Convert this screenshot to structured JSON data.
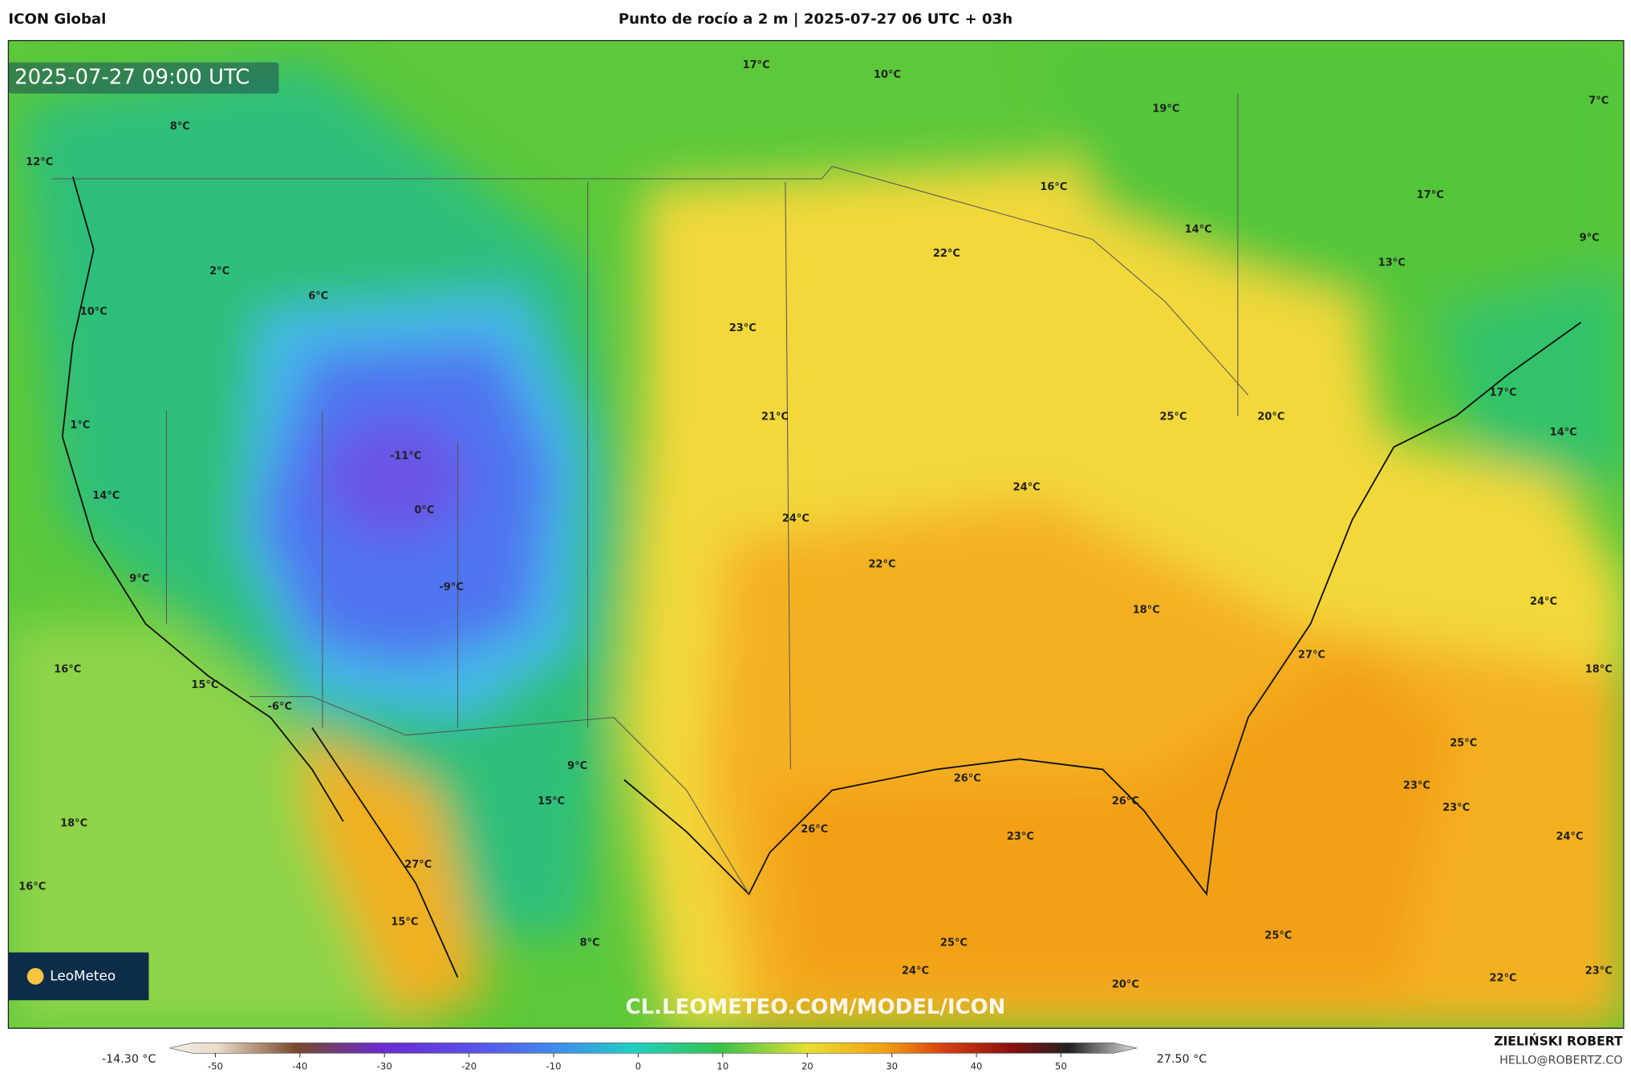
{
  "header": {
    "source": "ICON Global",
    "title": "Punto de rocío a 2 m | 2025-07-27 06 UTC + 03h"
  },
  "map": {
    "timestamp": "2025-07-27 09:00 UTC",
    "labels": [
      "17°C",
      "10°C",
      "19°C",
      "7°C",
      "8°C",
      "12°C",
      "16°C",
      "17°C",
      "14°C",
      "9°C",
      "22°C",
      "13°C",
      "2°C",
      "6°C",
      "10°C",
      "23°C",
      "17°C",
      "21°C",
      "25°C",
      "20°C",
      "1°C",
      "14°C",
      "-11°C",
      "24°C",
      "14°C",
      "0°C",
      "24°C",
      "22°C",
      "9°C",
      "-9°C",
      "24°C",
      "18°C",
      "27°C",
      "16°C",
      "18°C",
      "15°C",
      "-6°C",
      "25°C",
      "9°C",
      "26°C",
      "23°C",
      "15°C",
      "26°C",
      "23°C",
      "18°C",
      "26°C",
      "23°C",
      "24°C",
      "27°C",
      "16°C",
      "15°C",
      "25°C",
      "8°C",
      "25°C",
      "24°C",
      "22°C",
      "23°C",
      "20°C"
    ],
    "watermark": "CL.LEOMETEO.COM/MODEL/ICON",
    "logo": "LeoMeteo"
  },
  "colorbar": {
    "min_label": "-14.30 °C",
    "max_label": "27.50 °C",
    "ticks": [
      -50,
      -40,
      -30,
      -20,
      -10,
      0,
      10,
      20,
      30,
      40,
      50
    ]
  },
  "credits": {
    "author": "ZIELIŃSKI ROBERT",
    "email": "HELLO@ROBERTZ.CO"
  }
}
